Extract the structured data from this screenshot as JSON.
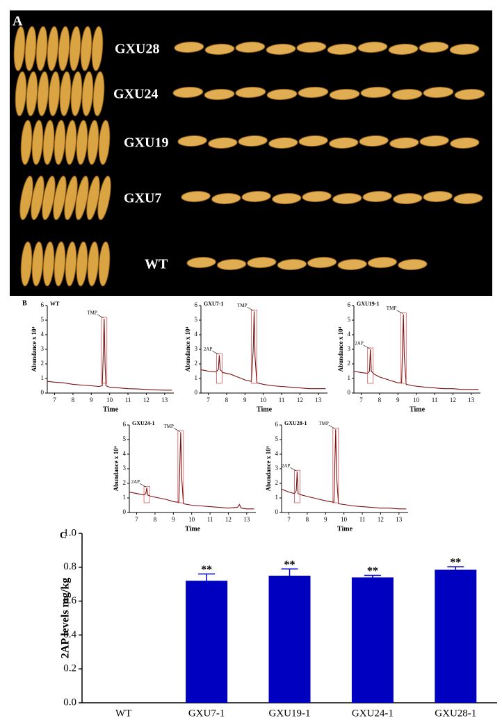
{
  "panel_labels": {
    "a": "A",
    "b": "B",
    "c": "C"
  },
  "photo": {
    "rows": [
      "GXU28",
      "GXU24",
      "GXU19",
      "GXU7",
      "WT"
    ]
  },
  "chart_data": [
    {
      "type": "line",
      "title": "WT",
      "xlabel": "Time",
      "ylabel": "Abundance x 10⁴",
      "x": [
        6.6,
        7,
        7.5,
        8,
        8.5,
        9,
        9.4,
        9.6,
        9.65,
        9.7,
        9.75,
        9.8,
        10,
        10.5,
        11,
        11.5,
        12,
        12.5,
        13,
        13.4
      ],
      "series": [
        {
          "color": "#7a1010",
          "values": [
            0.8,
            0.75,
            0.7,
            0.6,
            0.55,
            0.5,
            0.45,
            0.5,
            2.5,
            5.1,
            2.0,
            0.5,
            0.4,
            0.35,
            0.3,
            0.28,
            0.25,
            0.22,
            0.2,
            0.2
          ]
        }
      ],
      "xlim": [
        6.6,
        13.5
      ],
      "ylim": [
        0,
        6
      ],
      "xticks": [
        7,
        8,
        9,
        10,
        11,
        12,
        13
      ],
      "yticks": [
        0,
        1,
        2,
        3,
        4,
        5,
        6
      ],
      "annotations": [
        {
          "text": "TMP",
          "x": 9.7,
          "y": 5.1
        }
      ]
    },
    {
      "type": "line",
      "title": "GXU7-1",
      "xlabel": "Time",
      "ylabel": "Abundance x 10⁴",
      "x": [
        6.6,
        7,
        7.4,
        7.55,
        7.6,
        7.65,
        7.8,
        8.2,
        8.6,
        9,
        9.35,
        9.45,
        9.5,
        9.55,
        9.65,
        10,
        10.5,
        11,
        11.5,
        12,
        12.5,
        13,
        13.4
      ],
      "series": [
        {
          "color": "#7a1010",
          "values": [
            1.6,
            1.5,
            1.45,
            1.6,
            2.6,
            1.6,
            1.4,
            1.3,
            1.1,
            0.9,
            0.8,
            3.0,
            5.6,
            2.5,
            0.7,
            0.6,
            0.5,
            0.45,
            0.4,
            0.35,
            0.3,
            0.3,
            0.3
          ]
        }
      ],
      "xlim": [
        6.6,
        13.5
      ],
      "ylim": [
        0,
        6
      ],
      "xticks": [
        7,
        8,
        9,
        10,
        11,
        12,
        13
      ],
      "yticks": [
        0,
        1,
        2,
        3,
        4,
        5,
        6
      ],
      "annotations": [
        {
          "text": "2AP",
          "x": 7.6,
          "y": 2.6
        },
        {
          "text": "TMP",
          "x": 9.5,
          "y": 5.6
        }
      ]
    },
    {
      "type": "line",
      "title": "GXU19-1",
      "xlabel": "Time",
      "ylabel": "Abundance x 10⁴",
      "x": [
        6.6,
        7,
        7.35,
        7.45,
        7.5,
        7.55,
        7.7,
        8,
        8.5,
        9,
        9.2,
        9.3,
        9.35,
        9.45,
        9.8,
        10.5,
        11,
        11.5,
        12,
        12.5,
        13,
        13.4
      ],
      "series": [
        {
          "color": "#7a1010",
          "values": [
            1.5,
            1.4,
            1.35,
            1.5,
            3.0,
            1.5,
            1.3,
            1.1,
            0.9,
            0.7,
            0.7,
            5.4,
            2.5,
            0.6,
            0.5,
            0.4,
            0.35,
            0.3,
            0.3,
            0.25,
            0.25,
            0.25
          ]
        }
      ],
      "xlim": [
        6.6,
        13.5
      ],
      "ylim": [
        0,
        6
      ],
      "xticks": [
        7,
        8,
        9,
        10,
        11,
        12,
        13
      ],
      "yticks": [
        0,
        1,
        2,
        3,
        4,
        5,
        6
      ],
      "annotations": [
        {
          "text": "2AP",
          "x": 7.5,
          "y": 3.0
        },
        {
          "text": "TMP",
          "x": 9.3,
          "y": 5.4
        }
      ]
    },
    {
      "type": "line",
      "title": "GXU24-1",
      "xlabel": "Time",
      "ylabel": "Abundance x 10⁴",
      "x": [
        6.6,
        7,
        7.4,
        7.5,
        7.55,
        7.6,
        7.8,
        8.2,
        8.6,
        9,
        9.3,
        9.4,
        9.45,
        9.55,
        10,
        10.5,
        11,
        11.5,
        12,
        12.5,
        12.6,
        12.7,
        13,
        13.4
      ],
      "series": [
        {
          "color": "#7a1010",
          "values": [
            1.4,
            1.3,
            1.2,
            1.3,
            1.7,
            1.2,
            1.1,
            1.0,
            0.9,
            0.75,
            0.7,
            5.5,
            2.5,
            0.6,
            0.5,
            0.45,
            0.4,
            0.35,
            0.3,
            0.35,
            0.55,
            0.3,
            0.25,
            0.25
          ]
        }
      ],
      "xlim": [
        6.6,
        13.5
      ],
      "ylim": [
        0,
        6
      ],
      "xticks": [
        7,
        8,
        9,
        10,
        11,
        12,
        13
      ],
      "yticks": [
        0,
        1,
        2,
        3,
        4,
        5,
        6
      ],
      "annotations": [
        {
          "text": "2AP",
          "x": 7.55,
          "y": 1.7
        },
        {
          "text": "TMP",
          "x": 9.4,
          "y": 5.5
        }
      ]
    },
    {
      "type": "line",
      "title": "GXU28-1",
      "xlabel": "Time",
      "ylabel": "Abundance x 10⁴",
      "x": [
        6.6,
        7,
        7.3,
        7.4,
        7.45,
        7.5,
        7.7,
        8,
        8.5,
        9,
        9.45,
        9.55,
        9.6,
        9.7,
        10,
        10.5,
        11,
        11.5,
        12,
        12.5,
        13,
        13.4
      ],
      "series": [
        {
          "color": "#7a1010",
          "values": [
            1.6,
            1.4,
            1.3,
            1.5,
            2.8,
            1.3,
            1.2,
            1.1,
            0.95,
            0.8,
            0.7,
            5.7,
            2.5,
            0.6,
            0.55,
            0.45,
            0.4,
            0.35,
            0.3,
            0.3,
            0.25,
            0.25
          ]
        }
      ],
      "xlim": [
        6.6,
        13.5
      ],
      "ylim": [
        0,
        6
      ],
      "xticks": [
        7,
        8,
        9,
        10,
        11,
        12,
        13
      ],
      "yticks": [
        0,
        1,
        2,
        3,
        4,
        5,
        6
      ],
      "annotations": [
        {
          "text": "2AP",
          "x": 7.45,
          "y": 2.8
        },
        {
          "text": "TMP",
          "x": 9.55,
          "y": 5.7
        }
      ]
    },
    {
      "type": "bar",
      "ylabel": "2AP levels mg/kg",
      "categories": [
        "WT",
        "GXU7-1",
        "GXU19-1",
        "GXU24-1",
        "GXU28-1"
      ],
      "values": [
        0,
        0.72,
        0.75,
        0.74,
        0.785
      ],
      "errors": [
        null,
        0.04,
        0.04,
        0.012,
        0.018
      ],
      "annotations": [
        null,
        "**",
        "**",
        "**",
        "**"
      ],
      "color": "#0000c0",
      "ylim": [
        0,
        1
      ],
      "yticks": [
        {
          "value": 0,
          "label": "0.0"
        },
        0.2,
        0.4,
        0.6,
        0.8,
        {
          "value": 1,
          "label": "1.0"
        }
      ]
    }
  ]
}
